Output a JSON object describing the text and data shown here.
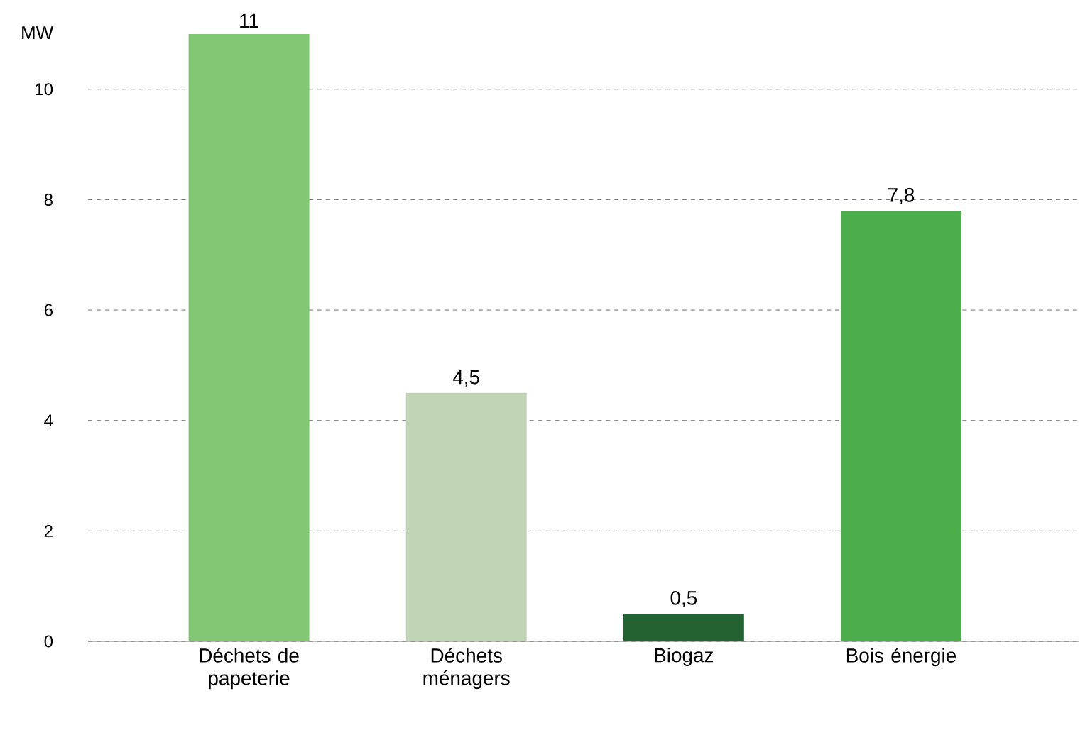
{
  "chart_data": {
    "type": "bar",
    "ylabel": "MW",
    "categories": [
      "Déchets de papeterie",
      "Déchets ménagers",
      "Biogaz",
      "Bois énergie"
    ],
    "values": [
      11,
      4.5,
      0.5,
      7.8
    ],
    "colors": [
      "#82c774",
      "#c0d4b6",
      "#236331",
      "#4cae4a"
    ],
    "value_labels": [
      "11",
      "4,5",
      "0,5",
      "7,8"
    ],
    "ylim": [
      0,
      11
    ],
    "yticks": [
      0,
      2,
      4,
      6,
      8,
      10
    ],
    "grid": "y"
  }
}
